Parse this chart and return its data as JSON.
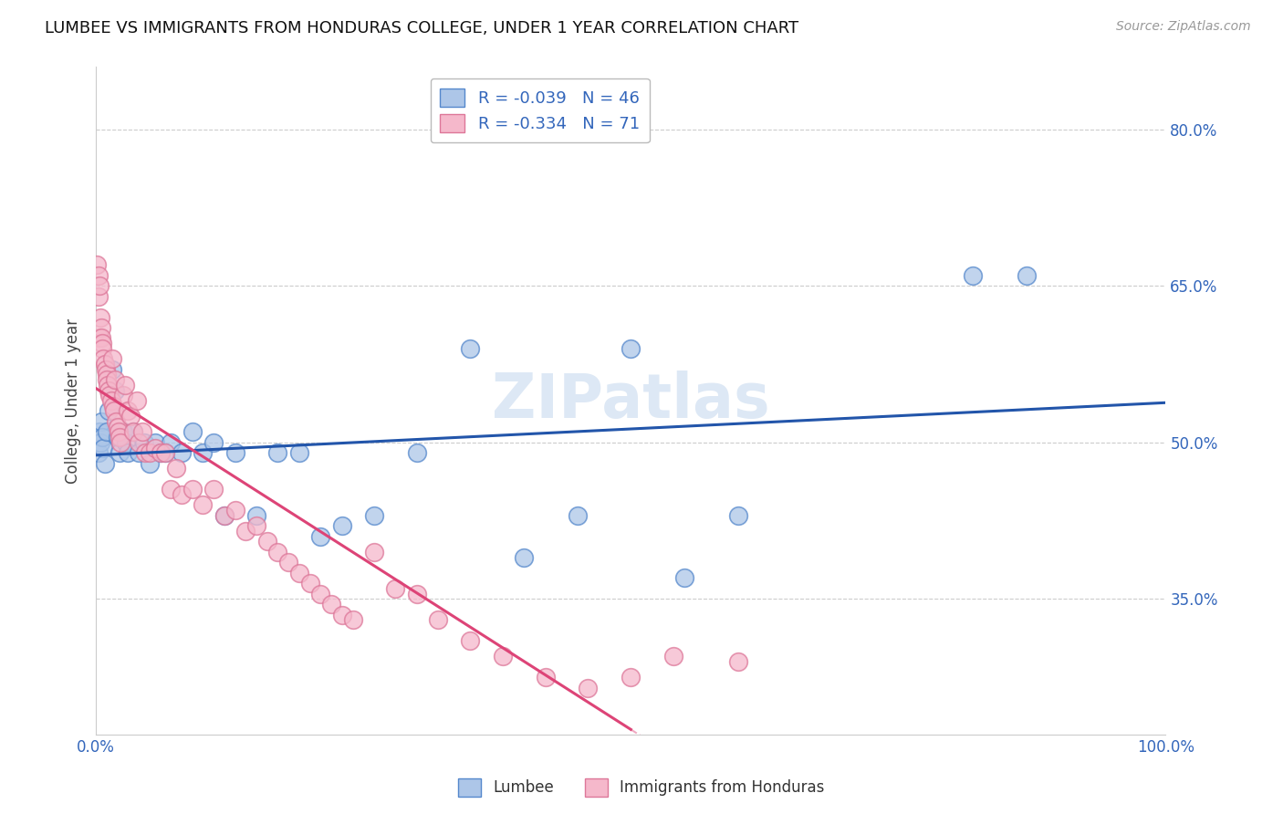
{
  "title": "LUMBEE VS IMMIGRANTS FROM HONDURAS COLLEGE, UNDER 1 YEAR CORRELATION CHART",
  "source": "Source: ZipAtlas.com",
  "ylabel": "College, Under 1 year",
  "legend1_label": "Lumbee",
  "legend2_label": "Immigrants from Honduras",
  "r1": -0.039,
  "n1": 46,
  "r2": -0.334,
  "n2": 71,
  "color_blue": "#adc6e8",
  "color_pink": "#f5b8cb",
  "edge_blue": "#5588cc",
  "edge_pink": "#dd7799",
  "line_blue": "#2255aa",
  "line_pink": "#dd4477",
  "lumbee_x": [
    0.001,
    0.002,
    0.003,
    0.004,
    0.005,
    0.006,
    0.007,
    0.008,
    0.01,
    0.012,
    0.015,
    0.018,
    0.02,
    0.022,
    0.025,
    0.028,
    0.03,
    0.035,
    0.04,
    0.045,
    0.05,
    0.055,
    0.06,
    0.065,
    0.07,
    0.08,
    0.09,
    0.1,
    0.11,
    0.12,
    0.13,
    0.15,
    0.17,
    0.19,
    0.21,
    0.23,
    0.26,
    0.3,
    0.35,
    0.4,
    0.45,
    0.5,
    0.55,
    0.6,
    0.82,
    0.87
  ],
  "lumbee_y": [
    0.5,
    0.49,
    0.51,
    0.5,
    0.52,
    0.505,
    0.495,
    0.48,
    0.51,
    0.53,
    0.57,
    0.55,
    0.505,
    0.49,
    0.51,
    0.5,
    0.49,
    0.51,
    0.49,
    0.5,
    0.48,
    0.5,
    0.49,
    0.49,
    0.5,
    0.49,
    0.51,
    0.49,
    0.5,
    0.43,
    0.49,
    0.43,
    0.49,
    0.49,
    0.41,
    0.42,
    0.43,
    0.49,
    0.59,
    0.39,
    0.43,
    0.59,
    0.37,
    0.43,
    0.66,
    0.66
  ],
  "honduras_x": [
    0.001,
    0.002,
    0.002,
    0.003,
    0.003,
    0.004,
    0.005,
    0.005,
    0.006,
    0.006,
    0.007,
    0.008,
    0.009,
    0.01,
    0.01,
    0.011,
    0.012,
    0.013,
    0.014,
    0.015,
    0.016,
    0.017,
    0.018,
    0.019,
    0.02,
    0.021,
    0.022,
    0.023,
    0.025,
    0.027,
    0.03,
    0.032,
    0.035,
    0.038,
    0.04,
    0.043,
    0.046,
    0.05,
    0.055,
    0.06,
    0.065,
    0.07,
    0.075,
    0.08,
    0.09,
    0.1,
    0.11,
    0.12,
    0.13,
    0.14,
    0.15,
    0.16,
    0.17,
    0.18,
    0.19,
    0.2,
    0.21,
    0.22,
    0.23,
    0.24,
    0.26,
    0.28,
    0.3,
    0.32,
    0.35,
    0.38,
    0.42,
    0.46,
    0.5,
    0.54,
    0.6
  ],
  "honduras_y": [
    0.67,
    0.66,
    0.64,
    0.6,
    0.65,
    0.62,
    0.61,
    0.6,
    0.595,
    0.59,
    0.58,
    0.575,
    0.57,
    0.565,
    0.56,
    0.555,
    0.55,
    0.545,
    0.54,
    0.58,
    0.535,
    0.53,
    0.56,
    0.52,
    0.515,
    0.51,
    0.505,
    0.5,
    0.545,
    0.555,
    0.53,
    0.525,
    0.51,
    0.54,
    0.5,
    0.51,
    0.49,
    0.49,
    0.495,
    0.49,
    0.49,
    0.455,
    0.475,
    0.45,
    0.455,
    0.44,
    0.455,
    0.43,
    0.435,
    0.415,
    0.42,
    0.405,
    0.395,
    0.385,
    0.375,
    0.365,
    0.355,
    0.345,
    0.335,
    0.33,
    0.395,
    0.36,
    0.355,
    0.33,
    0.31,
    0.295,
    0.275,
    0.265,
    0.275,
    0.295,
    0.29
  ],
  "ytick_vals": [
    0.35,
    0.5,
    0.65,
    0.8
  ],
  "ytick_labels": [
    "35.0%",
    "50.0%",
    "65.0%",
    "80.0%"
  ],
  "ymin": 0.22,
  "ymax": 0.86
}
